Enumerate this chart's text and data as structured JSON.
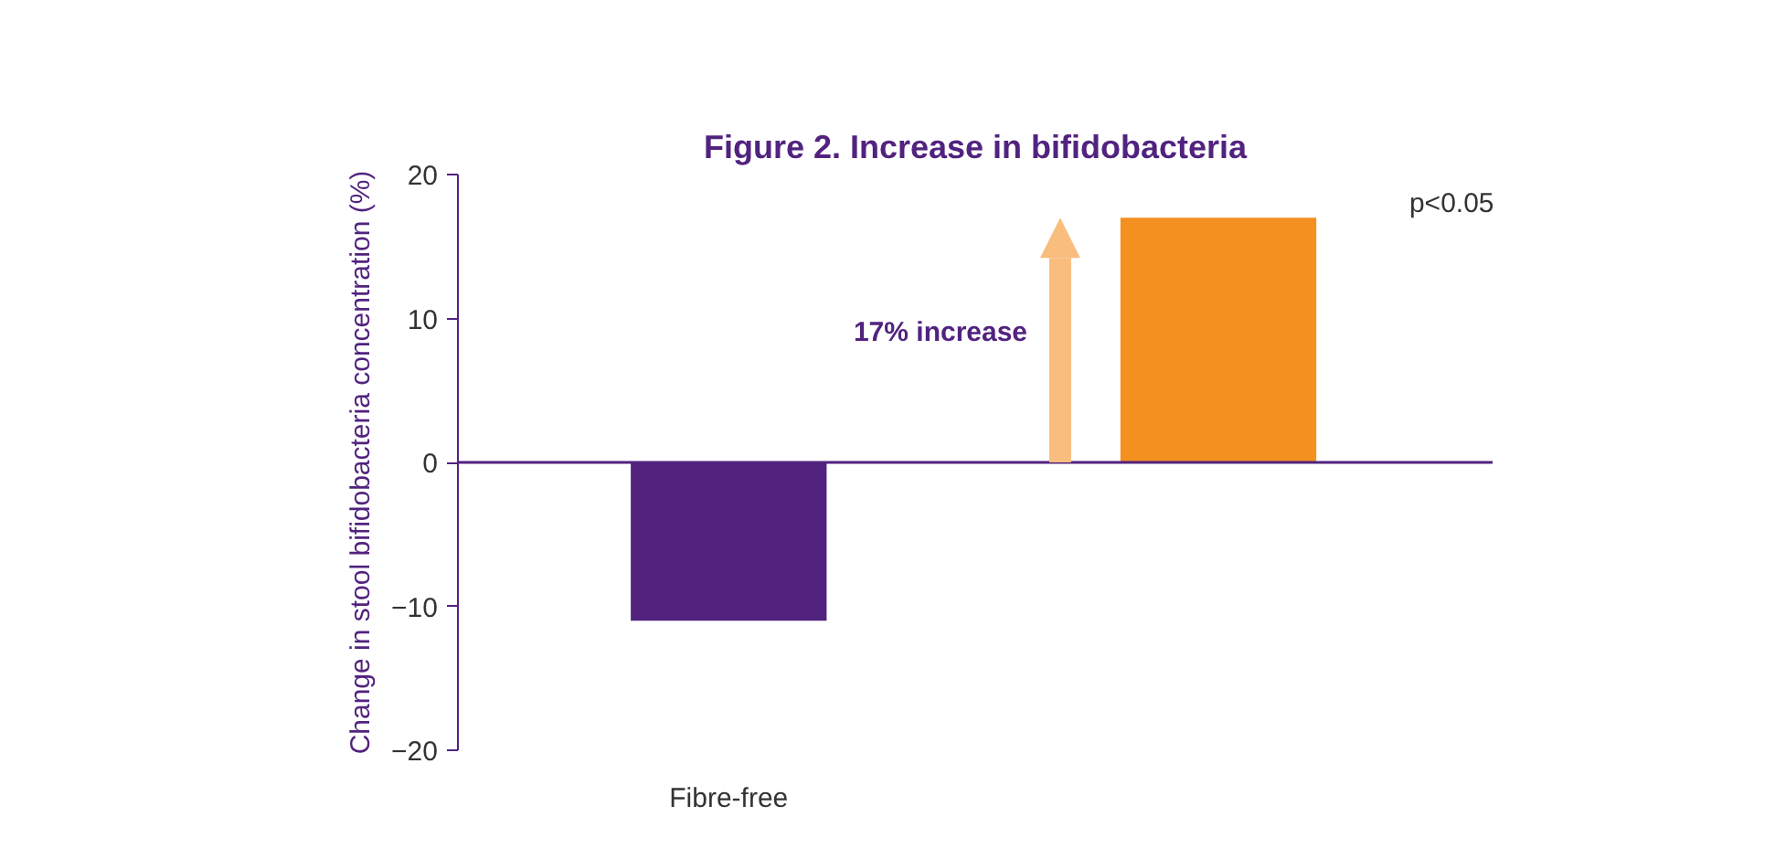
{
  "chart_data": {
    "type": "bar",
    "title": "Figure 2. Increase in bifidobacteria",
    "ylabel": "Change in stool bifidobacteria concentration (%)",
    "categories": [
      "Fibre-free",
      null
    ],
    "values": [
      -11,
      17
    ],
    "colors": [
      "#51237f",
      "#f39020"
    ],
    "ref_lines": [
      {
        "axis": "y",
        "value": 0,
        "color": "#51237f"
      }
    ],
    "ylim": [
      -20,
      20
    ],
    "yticks": [
      -20,
      -10,
      0,
      10,
      20
    ],
    "grid": false,
    "annotations": [
      "17% increase",
      "p<0.05"
    ]
  }
}
